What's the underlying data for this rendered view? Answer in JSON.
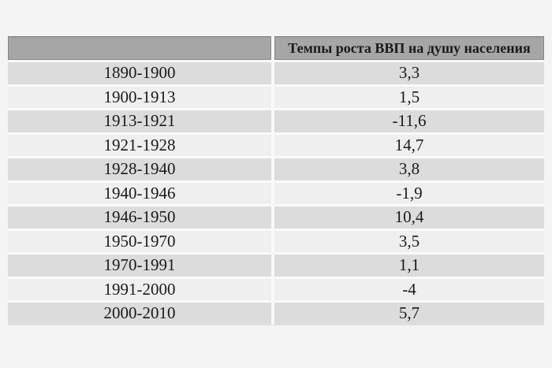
{
  "chart_data": {
    "type": "table",
    "title": "",
    "columns": [
      "",
      "Темпы роста ВВП на душу населения"
    ],
    "rows": [
      {
        "period": "1890-1900",
        "value": "3,3"
      },
      {
        "period": "1900-1913",
        "value": "1,5"
      },
      {
        "period": "1913-1921",
        "value": "-11,6"
      },
      {
        "period": "1921-1928",
        "value": "14,7"
      },
      {
        "period": "1928-1940",
        "value": "3,8"
      },
      {
        "period": "1940-1946",
        "value": "-1,9"
      },
      {
        "period": "1946-1950",
        "value": "10,4"
      },
      {
        "period": "1950-1970",
        "value": "3,5"
      },
      {
        "period": "1970-1991",
        "value": "1,1"
      },
      {
        "period": "1991-2000",
        "value": "-4"
      },
      {
        "period": "2000-2010",
        "value": "5,7"
      }
    ],
    "layout": {
      "header_row": true,
      "alternating_rows": true,
      "first_data_row_shade": "dark",
      "value_alignment": "center",
      "period_alignment": "center"
    }
  },
  "colors": {
    "page_bg": "#f4f4f4",
    "header_bg": "#a6a6a6",
    "header_border": "#858585",
    "row_dark_bg": "#dcdcdc",
    "row_light_bg": "#efefef",
    "separator": "#fafafa",
    "text": "#1a1a1a"
  }
}
